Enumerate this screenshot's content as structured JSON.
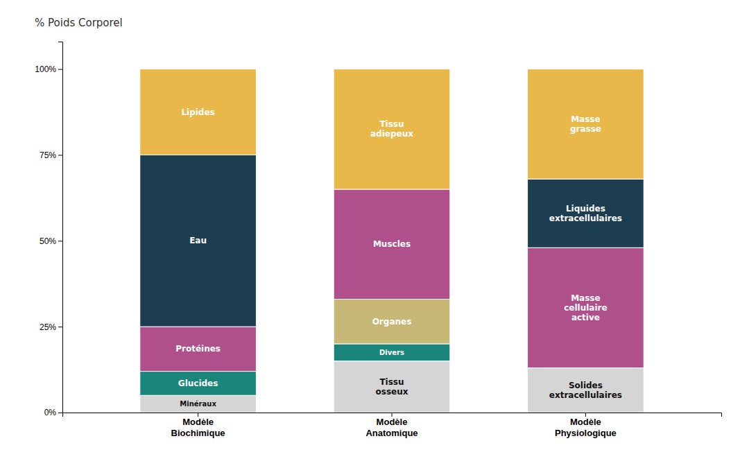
{
  "chart_data": {
    "type": "bar",
    "stacked": true,
    "title": "% Poids Corporel",
    "categories": [
      "Modèle\nBiochimique",
      "Modèle\nAnatomique",
      "Modèle\nPhysiologique"
    ],
    "series": [
      {
        "name": "Minéraux",
        "color": "#d5d5d5",
        "values": [
          5,
          null,
          null
        ]
      },
      {
        "name": "Glucides",
        "color": "#1a857a",
        "values": [
          7,
          null,
          null
        ]
      },
      {
        "name": "Protéines",
        "color": "#b0508a",
        "values": [
          13,
          null,
          null
        ]
      },
      {
        "name": "Eau",
        "color": "#1d3d50",
        "values": [
          50,
          null,
          null
        ]
      },
      {
        "name": "Lipides",
        "color": "#e8b84b",
        "values": [
          25,
          null,
          null
        ]
      },
      {
        "name": "Tissu\nosseux",
        "color": "#d5d5d5",
        "values": [
          null,
          15,
          null
        ]
      },
      {
        "name": "Divers",
        "color": "#1a857a",
        "values": [
          null,
          5,
          null
        ]
      },
      {
        "name": "Organes",
        "color": "#c8b878",
        "values": [
          null,
          13,
          null
        ]
      },
      {
        "name": "Muscles",
        "color": "#b0508a",
        "values": [
          null,
          32,
          null
        ]
      },
      {
        "name": "Tissu\nadiepeux",
        "color": "#e8b84b",
        "values": [
          null,
          35,
          null
        ]
      },
      {
        "name": "Solides\nextracellulaires",
        "color": "#d5d5d5",
        "values": [
          null,
          null,
          13
        ]
      },
      {
        "name": "Masse\ncellulaire\nactive",
        "color": "#b0508a",
        "values": [
          null,
          null,
          35
        ]
      },
      {
        "name": "Liquides\nextracellulaires",
        "color": "#1d3d50",
        "values": [
          null,
          null,
          20
        ]
      },
      {
        "name": "Masse\ngrasse",
        "color": "#e8b84b",
        "values": [
          null,
          null,
          32
        ]
      }
    ],
    "ylim": [
      0,
      108
    ],
    "yticks": [
      {
        "value": 0,
        "label": "0%"
      },
      {
        "value": 25,
        "label": "25%"
      },
      {
        "value": 50,
        "label": "50%"
      },
      {
        "value": 75,
        "label": "75%"
      },
      {
        "value": 100,
        "label": "100%"
      }
    ],
    "grid": false
  }
}
